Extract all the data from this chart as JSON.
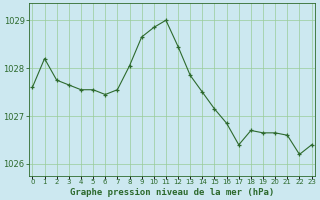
{
  "x": [
    0,
    1,
    2,
    3,
    4,
    5,
    6,
    7,
    8,
    9,
    10,
    11,
    12,
    13,
    14,
    15,
    16,
    17,
    18,
    19,
    20,
    21,
    22,
    23
  ],
  "y": [
    1027.6,
    1028.2,
    1027.75,
    1027.65,
    1027.55,
    1027.55,
    1027.45,
    1027.55,
    1028.05,
    1028.65,
    1028.85,
    1029.0,
    1028.45,
    1027.85,
    1027.5,
    1027.15,
    1026.85,
    1026.4,
    1026.7,
    1026.65,
    1026.65,
    1026.6,
    1026.2,
    1026.4
  ],
  "line_color": "#2d6a2d",
  "marker": "+",
  "markersize": 3,
  "linewidth": 0.8,
  "bg_color": "#cce8f0",
  "grid_color": "#99cc99",
  "title": "Graphe pression niveau de la mer (hPa)",
  "ylabel_ticks": [
    1026,
    1027,
    1028,
    1029
  ],
  "xlim": [
    -0.3,
    23.3
  ],
  "ylim": [
    1025.75,
    1029.35
  ],
  "xtick_labels": [
    "0",
    "1",
    "2",
    "3",
    "4",
    "5",
    "6",
    "7",
    "8",
    "9",
    "10",
    "11",
    "12",
    "13",
    "14",
    "15",
    "16",
    "17",
    "18",
    "19",
    "20",
    "21",
    "22",
    "23"
  ],
  "tick_color": "#2d6a2d",
  "ylabel_fontsize": 6,
  "xlabel_fontsize": 5,
  "title_fontsize": 6.5,
  "spine_color": "#2d6a2d"
}
